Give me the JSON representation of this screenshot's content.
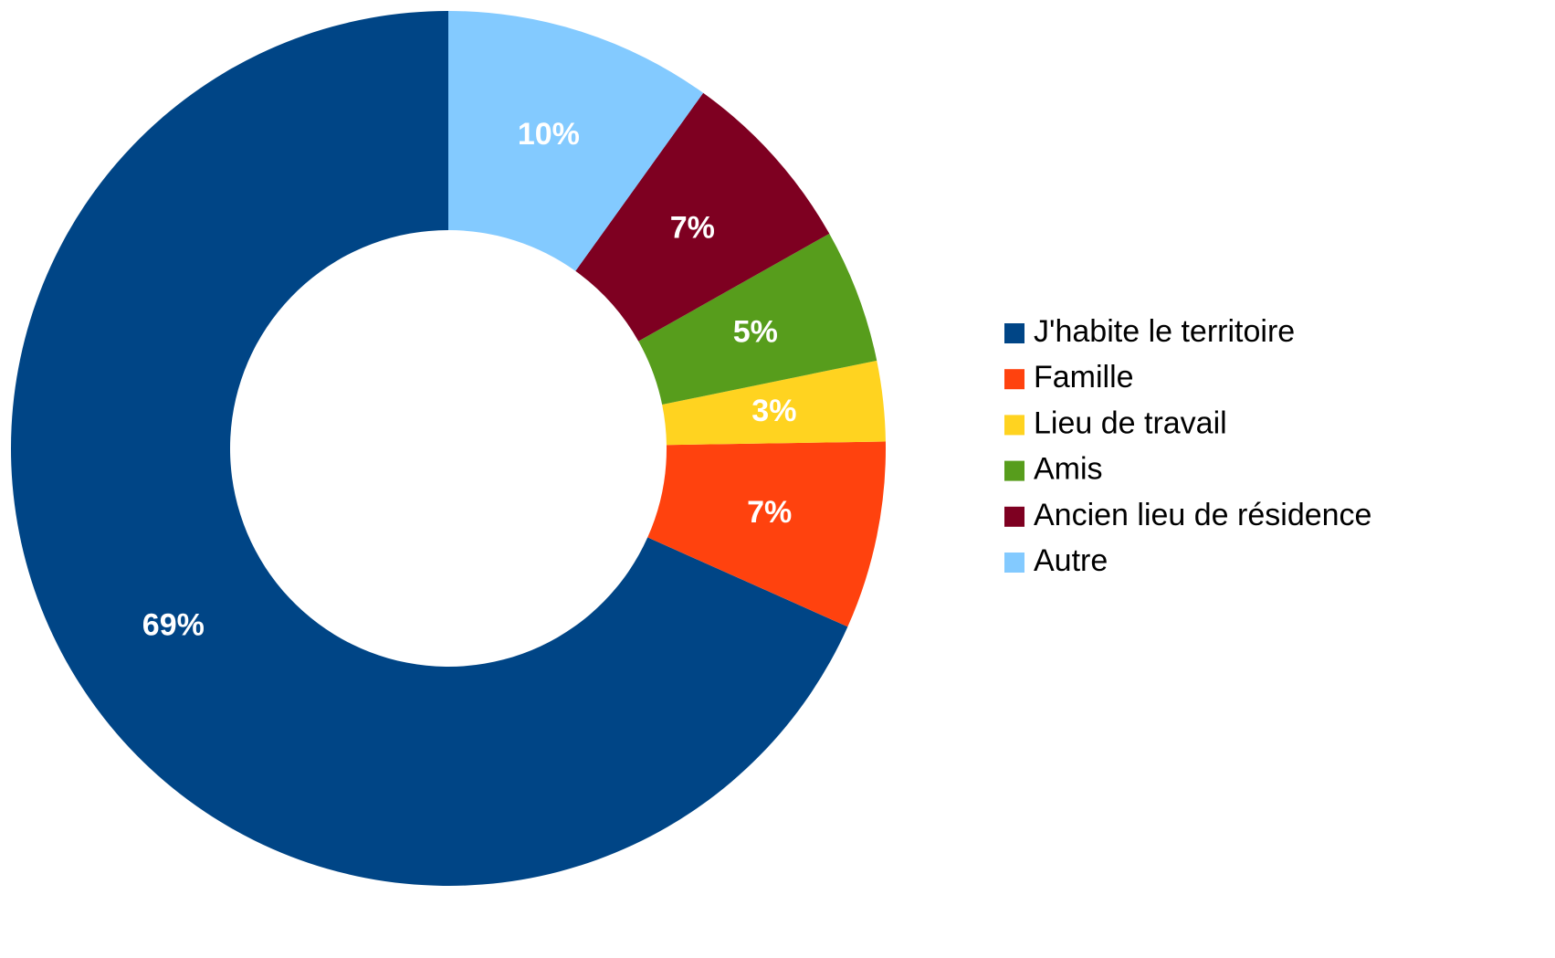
{
  "chart_data": {
    "type": "pie",
    "categories": [
      "J'habite le territoire",
      "Famille",
      "Lieu de travail",
      "Amis",
      "Ancien lieu de résidence",
      "Autre"
    ],
    "values": [
      69,
      7,
      3,
      5,
      7,
      10
    ],
    "value_labels": [
      "69%",
      "7%",
      "3%",
      "5%",
      "7%",
      "10%"
    ],
    "colors": [
      "#004586",
      "#ff420e",
      "#ffd320",
      "#579d1c",
      "#7e0021",
      "#83caff"
    ],
    "donut": true,
    "legend": "right"
  }
}
